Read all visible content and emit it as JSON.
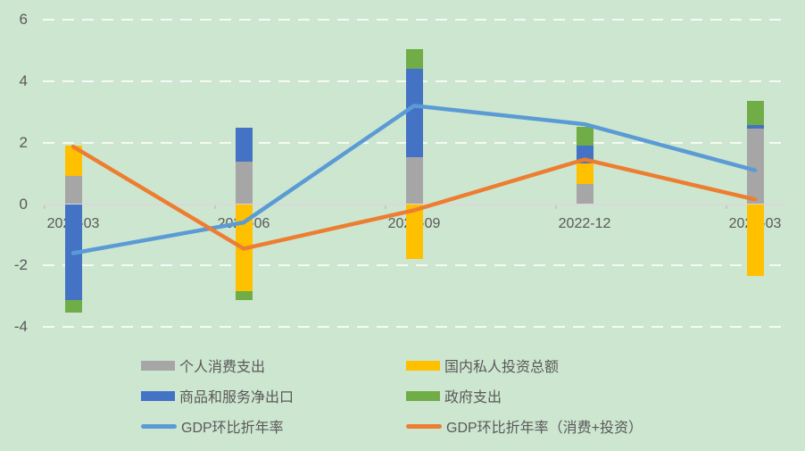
{
  "chart_data": {
    "type": "bar",
    "subtype": "stacked-bars-with-lines",
    "title": "",
    "categories": [
      "2022-03",
      "2022-06",
      "2022-09",
      "2022-12",
      "2023-03"
    ],
    "bar_series": [
      {
        "name": "个人消费支出",
        "color": "#A6A6A6",
        "values": [
          0.92,
          1.38,
          1.54,
          0.65,
          2.45
        ]
      },
      {
        "name": "国内私人投资总额",
        "color": "#FFC000",
        "values": [
          0.97,
          -2.83,
          -1.78,
          0.67,
          -2.35
        ]
      },
      {
        "name": "商品和服务净出口",
        "color": "#4472C4",
        "values": [
          -3.13,
          1.11,
          2.86,
          0.58,
          0.12
        ]
      },
      {
        "name": "政府支出",
        "color": "#70AD47",
        "values": [
          -0.4,
          -0.29,
          0.65,
          0.61,
          0.78
        ]
      }
    ],
    "line_series": [
      {
        "name": "GDP环比折年率",
        "color": "#5B9BD5",
        "values": [
          -1.6,
          -0.6,
          3.2,
          2.6,
          1.1
        ]
      },
      {
        "name": "GDP环比折年率（消费+投资）",
        "color": "#ED7D31",
        "values": [
          1.87,
          -1.45,
          -0.2,
          1.45,
          0.15
        ]
      }
    ],
    "y_axis": {
      "ticks": [
        6,
        4,
        2,
        0,
        -2,
        -4
      ],
      "min": -4.6,
      "max": 6
    },
    "x_axis": {
      "labels": [
        "2022-03",
        "2022-06",
        "2022-09",
        "2022-12",
        "2023-03"
      ]
    },
    "grid": {
      "horizontal": true,
      "style": "dashed"
    },
    "legend_position": "bottom"
  },
  "legend": {
    "items": [
      {
        "label": "个人消费支出",
        "swatch": "bar",
        "color": "#A6A6A6",
        "col": 0,
        "row": 0
      },
      {
        "label": "国内私人投资总额",
        "swatch": "bar",
        "color": "#FFC000",
        "col": 1,
        "row": 0
      },
      {
        "label": "商品和服务净出口",
        "swatch": "bar",
        "color": "#4472C4",
        "col": 0,
        "row": 1
      },
      {
        "label": "政府支出",
        "swatch": "bar",
        "color": "#70AD47",
        "col": 1,
        "row": 1
      },
      {
        "label": "GDP环比折年率",
        "swatch": "line",
        "color": "#5B9BD5",
        "col": 0,
        "row": 2
      },
      {
        "label": "GDP环比折年率（消费+投资）",
        "swatch": "line",
        "color": "#ED7D31",
        "col": 1,
        "row": 2
      }
    ]
  },
  "colors": {
    "background": "#CDE6CF",
    "gridline": "rgba(255,255,255,0.82)",
    "axis_line": "#DCD7DB",
    "tick": "#C4CBC4",
    "text": "#595959"
  }
}
